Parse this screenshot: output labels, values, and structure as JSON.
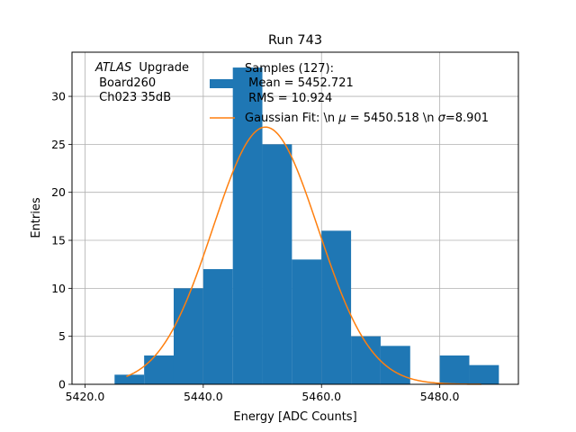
{
  "chart_data": {
    "type": "bar",
    "title": "Run 743",
    "xlabel": "Energy [ADC Counts]",
    "ylabel": "Entries",
    "xlim": [
      5417.8,
      5493.3
    ],
    "ylim": [
      0,
      34.6
    ],
    "grid": true,
    "xticks": [
      5420.0,
      5440.0,
      5460.0,
      5480.0
    ],
    "xtick_labels": [
      "5420.0",
      "5440.0",
      "5460.0",
      "5480.0"
    ],
    "yticks": [
      0,
      5,
      10,
      15,
      20,
      25,
      30
    ],
    "ytick_labels": [
      "0",
      "5",
      "10",
      "15",
      "20",
      "25",
      "30"
    ],
    "annotation_lines": [
      "Upgrade",
      " Board260",
      " Ch023 35dB"
    ],
    "annotation_italic": "ATLAS",
    "legend": {
      "placement": "top-right",
      "histogram_label_lines": [
        "Samples (127):",
        " Mean = 5452.721",
        " RMS = 10.924"
      ],
      "fit_label_parts": [
        "Gaussian Fit: \\n ",
        "μ",
        " = 5450.518 \\n ",
        "σ",
        "=8.901"
      ]
    },
    "histogram": {
      "name": "Samples (127):\n Mean = 5452.721\n RMS = 10.924",
      "color": "#1f77b4",
      "bin_edges": [
        5425.0,
        5430.0,
        5435.0,
        5440.0,
        5445.0,
        5450.0,
        5455.0,
        5460.0,
        5465.0,
        5470.0,
        5475.0,
        5480.0,
        5485.0,
        5490.0
      ],
      "counts": [
        1,
        3,
        10,
        12,
        33,
        25,
        13,
        16,
        5,
        4,
        0,
        3,
        2
      ]
    },
    "fit": {
      "name": "Gaussian Fit",
      "color": "#ff7f0e",
      "mu": 5450.518,
      "sigma": 8.901,
      "amplitude": 26.8,
      "x_range": [
        5427.0,
        5487.0
      ]
    }
  }
}
